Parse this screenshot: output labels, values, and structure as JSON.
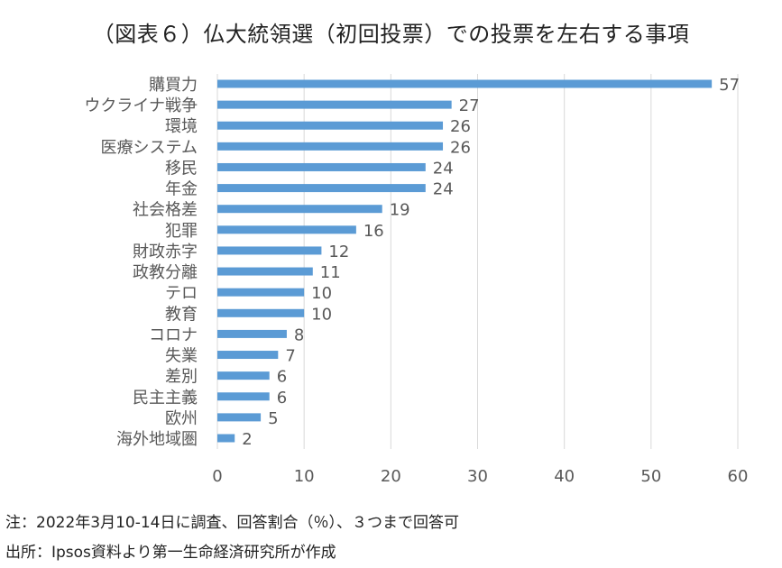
{
  "chart_data": {
    "type": "bar",
    "orientation": "horizontal",
    "title": "（図表６）仏大統領選（初回投票）での投票を左右する事項",
    "categories": [
      "購買力",
      "ウクライナ戦争",
      "環境",
      "医療システム",
      "移民",
      "年金",
      "社会格差",
      "犯罪",
      "財政赤字",
      "政教分離",
      "テロ",
      "教育",
      "コロナ",
      "失業",
      "差別",
      "民主主義",
      "欧州",
      "海外地域圏"
    ],
    "values": [
      57,
      27,
      26,
      26,
      24,
      24,
      19,
      16,
      12,
      11,
      10,
      10,
      8,
      7,
      6,
      6,
      5,
      2
    ],
    "xlim": [
      0,
      60
    ],
    "xticks": [
      "0",
      "10",
      "20",
      "30",
      "40",
      "50",
      "60"
    ],
    "grid": true,
    "bar_color": "#5b9bd5",
    "xlabel": "",
    "ylabel": ""
  },
  "notes": {
    "note": "注：2022年3月10-14日に調査、回答割合（％）、３つまで回答可",
    "source": "出所：Ipsos資料より第一生命経済研究所が作成"
  }
}
